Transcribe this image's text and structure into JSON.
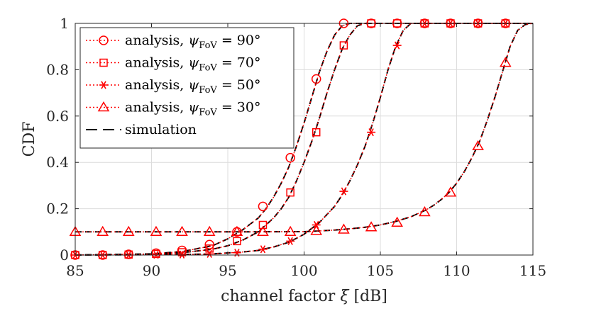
{
  "chart_data": {
    "type": "line",
    "title": "",
    "xlabel": "channel factor",
    "xlabel_symbol": "ξ",
    "xlabel_unit": "[dB]",
    "ylabel": "CDF",
    "xlim": [
      85,
      115
    ],
    "ylim": [
      0,
      1
    ],
    "xticks": [
      85,
      90,
      95,
      100,
      105,
      110,
      115
    ],
    "xtick_labels": [
      "85",
      "90",
      "95",
      "100",
      "105",
      "110",
      "115"
    ],
    "yticks": [
      0,
      0.2,
      0.4,
      0.6,
      0.8,
      1
    ],
    "ytick_labels": [
      "0",
      "0.2",
      "0.4",
      "0.6",
      "0.8",
      "1"
    ],
    "grid": true,
    "legend_position": "top-left",
    "colors": {
      "analysis": "#ff0000",
      "simulation": "#000000",
      "grid": "#dcdcdc",
      "axis": "#262626"
    },
    "series": [
      {
        "name": "analysis, ψ_FoV = 90°",
        "legend_prefix": "analysis, ",
        "legend_symbol": "ψ",
        "legend_sub": "FoV",
        "legend_suffix": " = 90°",
        "marker": "circle",
        "marker_x": [
          85,
          86.8,
          88.5,
          90.3,
          92,
          93.8,
          95.6,
          97.3,
          99.1,
          100.8,
          102.6,
          104.4,
          106.1,
          107.9,
          109.6,
          111.4,
          113.2
        ],
        "marker_y": [
          0,
          0,
          0.003,
          0.008,
          0.02,
          0.045,
          0.1,
          0.21,
          0.42,
          0.76,
          1.0,
          1.0,
          1.0,
          1.0,
          1.0,
          1.0,
          1.0
        ],
        "curve_x": [
          85,
          90,
          92,
          94,
          95,
          96,
          97,
          97.5,
          98,
          98.5,
          99,
          99.5,
          100,
          100.5,
          101,
          101.5,
          102,
          102.5,
          103,
          104,
          115
        ],
        "curve_y": [
          0,
          0.005,
          0.015,
          0.04,
          0.07,
          0.11,
          0.16,
          0.2,
          0.25,
          0.31,
          0.38,
          0.47,
          0.57,
          0.68,
          0.79,
          0.88,
          0.95,
          0.99,
          1.0,
          1.0,
          1.0
        ]
      },
      {
        "name": "analysis, ψ_FoV = 70°",
        "legend_prefix": "analysis, ",
        "legend_symbol": "ψ",
        "legend_sub": "FoV",
        "legend_suffix": " = 70°",
        "marker": "square",
        "marker_x": [
          85,
          86.8,
          88.5,
          90.3,
          92,
          93.8,
          95.6,
          97.3,
          99.1,
          100.8,
          102.6,
          104.4,
          106.1,
          107.9,
          109.6,
          111.4,
          113.2
        ],
        "marker_y": [
          0,
          0,
          0.002,
          0.005,
          0.012,
          0.028,
          0.06,
          0.13,
          0.27,
          0.53,
          0.905,
          1.0,
          1.0,
          1.0,
          1.0,
          1.0,
          1.0
        ],
        "curve_x": [
          85,
          90,
          92,
          94,
          95,
          96,
          97,
          98,
          98.5,
          99,
          99.5,
          100,
          100.5,
          101,
          101.5,
          102,
          102.5,
          103,
          103.5,
          104,
          105,
          115
        ],
        "curve_y": [
          0,
          0.003,
          0.01,
          0.025,
          0.04,
          0.065,
          0.1,
          0.16,
          0.2,
          0.25,
          0.32,
          0.4,
          0.49,
          0.59,
          0.7,
          0.8,
          0.89,
          0.95,
          0.99,
          1.0,
          1.0,
          1.0
        ]
      },
      {
        "name": "analysis, ψ_FoV = 50°",
        "legend_prefix": "analysis, ",
        "legend_symbol": "ψ",
        "legend_sub": "FoV",
        "legend_suffix": " = 50°",
        "marker": "asterisk",
        "marker_x": [
          85,
          86.8,
          88.5,
          90.3,
          92,
          93.8,
          95.6,
          97.3,
          99.1,
          100.8,
          102.6,
          104.4,
          106.1,
          107.9,
          109.6,
          111.4,
          113.2
        ],
        "marker_y": [
          0,
          0,
          0,
          0.001,
          0.002,
          0.005,
          0.01,
          0.025,
          0.06,
          0.13,
          0.275,
          0.53,
          0.905,
          1.0,
          1.0,
          1.0,
          1.0
        ],
        "curve_x": [
          85,
          92,
          94,
          96,
          97,
          98,
          99,
          100,
          101,
          102,
          102.5,
          103,
          103.5,
          104,
          104.5,
          105,
          105.5,
          106,
          106.5,
          107,
          108,
          115
        ],
        "curve_y": [
          0,
          0.002,
          0.005,
          0.013,
          0.02,
          0.035,
          0.055,
          0.09,
          0.14,
          0.21,
          0.26,
          0.32,
          0.39,
          0.47,
          0.57,
          0.68,
          0.8,
          0.9,
          0.97,
          1.0,
          1.0,
          1.0
        ]
      },
      {
        "name": "analysis, ψ_FoV = 30°",
        "legend_prefix": "analysis, ",
        "legend_symbol": "ψ",
        "legend_sub": "FoV",
        "legend_suffix": " = 30°",
        "marker": "triangle",
        "marker_x": [
          85,
          86.8,
          88.5,
          90.3,
          92,
          93.8,
          95.6,
          97.3,
          99.1,
          100.8,
          102.6,
          104.4,
          106.1,
          107.9,
          109.6,
          111.4,
          113.2
        ],
        "marker_y": [
          0.1,
          0.1,
          0.1,
          0.1,
          0.1,
          0.1,
          0.1,
          0.1,
          0.1,
          0.104,
          0.11,
          0.12,
          0.14,
          0.185,
          0.27,
          0.47,
          0.83
        ],
        "curve_x": [
          85,
          90,
          95,
          100,
          101,
          102,
          103,
          104,
          105,
          106,
          107,
          108,
          108.5,
          109,
          109.5,
          110,
          110.5,
          111,
          111.5,
          112,
          112.5,
          113,
          113.5,
          114,
          114.5,
          115
        ],
        "curve_y": [
          0.1,
          0.1,
          0.1,
          0.101,
          0.104,
          0.108,
          0.113,
          0.12,
          0.13,
          0.145,
          0.165,
          0.195,
          0.215,
          0.24,
          0.27,
          0.31,
          0.36,
          0.42,
          0.49,
          0.58,
          0.68,
          0.79,
          0.9,
          0.97,
          0.995,
          1.0
        ]
      }
    ],
    "simulation_legend": "simulation"
  }
}
